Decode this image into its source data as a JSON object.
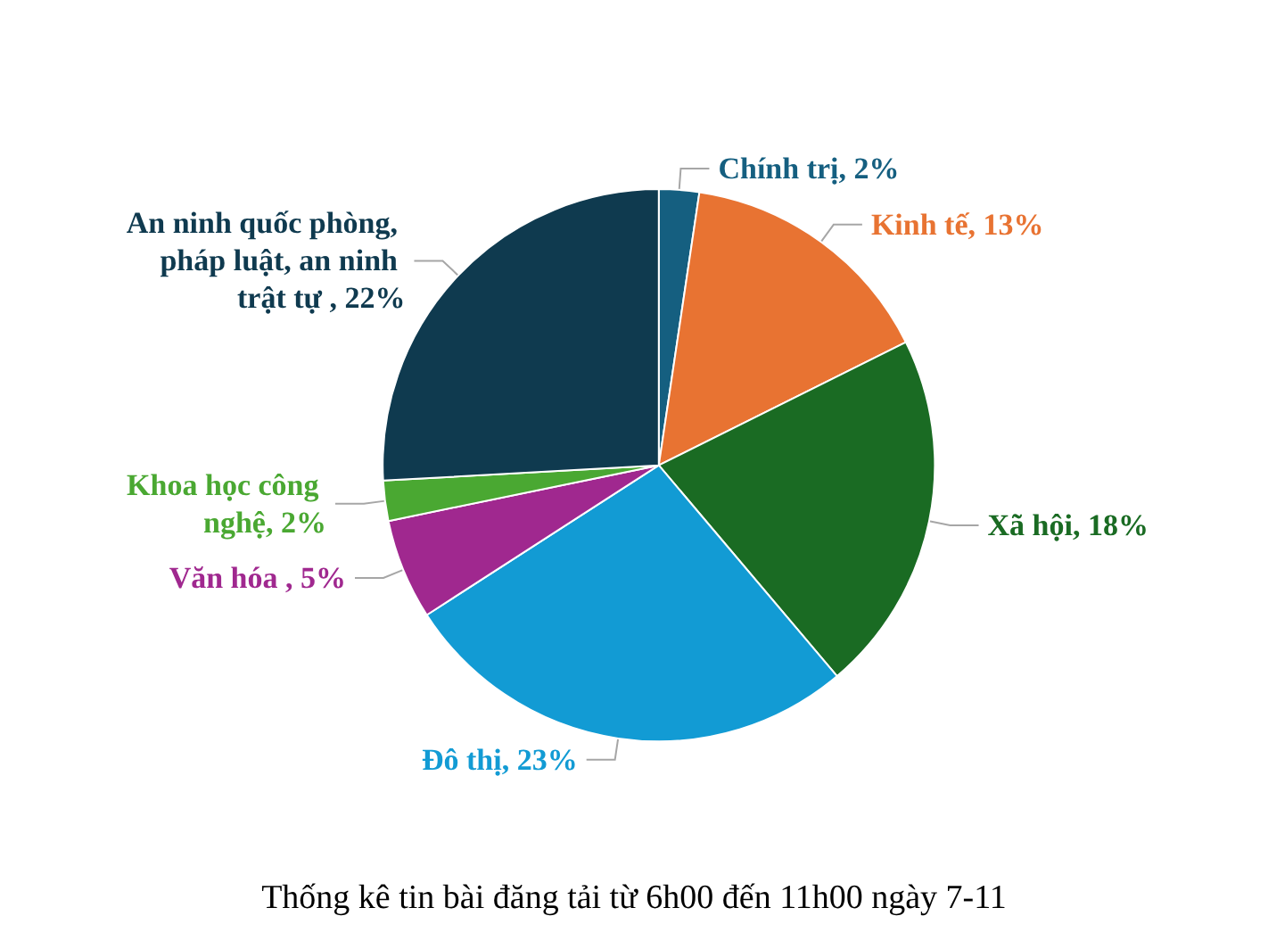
{
  "chart_data": {
    "type": "pie",
    "title": "Thống kê tin bài đăng tải từ 6h00 đến 11h00 ngày 7-11",
    "categories": [
      "Chính trị",
      "Kinh tế",
      "Xã hội",
      "Đô thị",
      "Văn hóa ",
      "Khoa học công nghệ",
      "An ninh quốc phòng, pháp luật, an ninh trật tự "
    ],
    "values": [
      2,
      13,
      18,
      23,
      5,
      2,
      22
    ],
    "value_labels": [
      "2%",
      "13%",
      "18%",
      "23%",
      "5%",
      "2%",
      "22%"
    ],
    "colors": [
      "#155f80",
      "#e87332",
      "#1a6b23",
      "#129bd4",
      "#a0288f",
      "#4aa832",
      "#0f3a4f"
    ]
  }
}
